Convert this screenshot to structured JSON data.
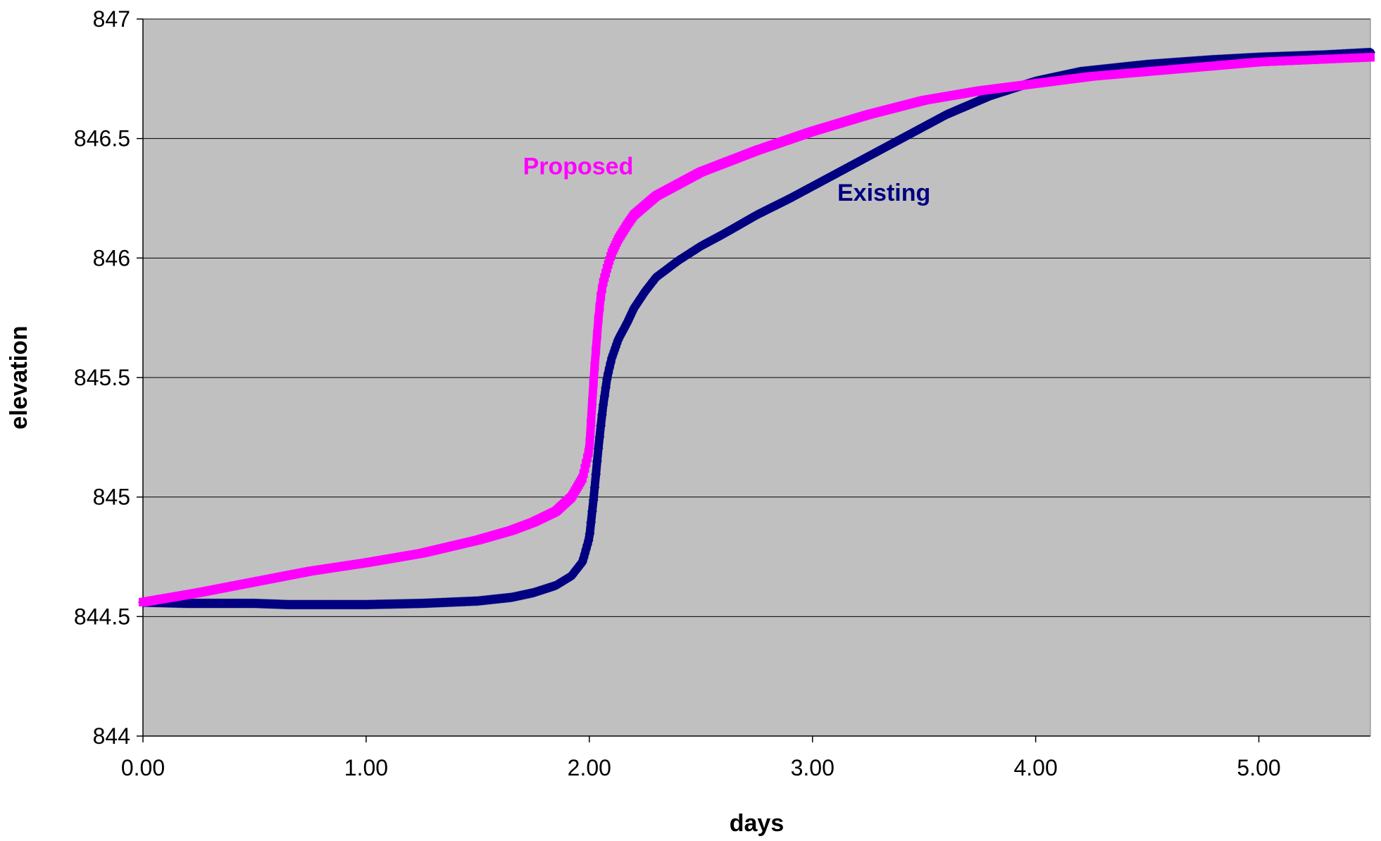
{
  "chart_data": {
    "type": "scatter",
    "xlabel": "days",
    "ylabel": "elevation",
    "xlim": [
      0,
      5.5
    ],
    "ylim": [
      844,
      847
    ],
    "x_ticks": [
      "0.00",
      "1.00",
      "2.00",
      "3.00",
      "4.00",
      "5.00"
    ],
    "y_ticks": [
      "844",
      "844.5",
      "845",
      "845.5",
      "846",
      "846.5",
      "847"
    ],
    "grid": "horizontal",
    "plot_background": "#c0c0c0",
    "series": [
      {
        "name": "Existing",
        "color": "#000080",
        "marker": "diamond",
        "x": [
          0.0,
          0.2,
          0.5,
          0.65,
          0.8,
          1.0,
          1.25,
          1.5,
          1.65,
          1.75,
          1.85,
          1.92,
          1.97,
          2.0,
          2.02,
          2.04,
          2.06,
          2.08,
          2.1,
          2.13,
          2.17,
          2.2,
          2.25,
          2.3,
          2.4,
          2.5,
          2.6,
          2.75,
          2.9,
          3.0,
          3.2,
          3.4,
          3.6,
          3.8,
          4.0,
          4.2,
          4.5,
          4.8,
          5.0,
          5.3,
          5.5
        ],
        "y": [
          844.56,
          844.555,
          844.555,
          844.55,
          844.55,
          844.55,
          844.555,
          844.565,
          844.58,
          844.6,
          844.63,
          844.67,
          844.73,
          844.83,
          845.0,
          845.2,
          845.37,
          845.5,
          845.58,
          845.66,
          845.73,
          845.79,
          845.86,
          845.92,
          845.99,
          846.05,
          846.1,
          846.18,
          846.25,
          846.3,
          846.4,
          846.5,
          846.6,
          846.68,
          846.74,
          846.78,
          846.81,
          846.83,
          846.84,
          846.85,
          846.86
        ]
      },
      {
        "name": "Proposed",
        "color": "#ff00ff",
        "marker": "square",
        "x": [
          0.0,
          0.25,
          0.5,
          0.75,
          1.0,
          1.25,
          1.5,
          1.65,
          1.75,
          1.85,
          1.92,
          1.97,
          2.0,
          2.01,
          2.02,
          2.03,
          2.04,
          2.05,
          2.06,
          2.08,
          2.1,
          2.13,
          2.17,
          2.2,
          2.25,
          2.3,
          2.4,
          2.5,
          2.75,
          3.0,
          3.25,
          3.5,
          3.75,
          4.0,
          4.25,
          4.5,
          4.75,
          5.0,
          5.25,
          5.5
        ],
        "y": [
          844.56,
          844.6,
          844.645,
          844.69,
          844.725,
          844.765,
          844.82,
          844.86,
          844.895,
          844.94,
          845.0,
          845.08,
          845.2,
          845.35,
          845.5,
          845.62,
          845.74,
          845.83,
          845.89,
          845.96,
          846.02,
          846.08,
          846.14,
          846.18,
          846.22,
          846.26,
          846.31,
          846.36,
          846.45,
          846.53,
          846.6,
          846.66,
          846.7,
          846.73,
          846.76,
          846.78,
          846.8,
          846.82,
          846.83,
          846.84
        ]
      }
    ],
    "annotations": [
      {
        "text": "Proposed",
        "color": "#ff00ff",
        "x": 1.95,
        "y": 846.35
      },
      {
        "text": "Existing",
        "color": "#000080",
        "x": 3.32,
        "y": 846.24
      }
    ]
  }
}
